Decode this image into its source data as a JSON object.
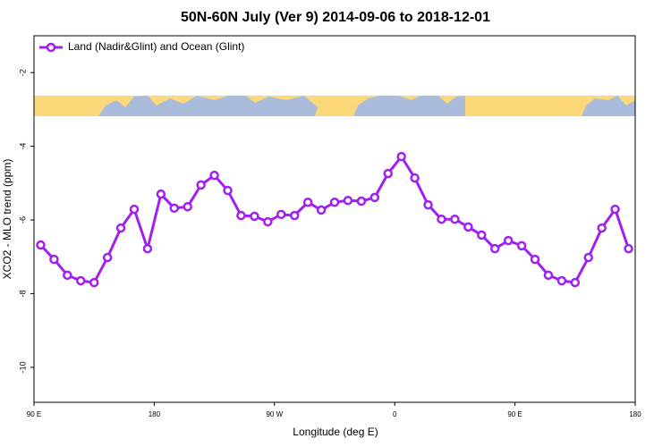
{
  "chart_data": {
    "type": "line",
    "title": "50N-60N July (Ver 9)   2014-09-06 to 2018-12-01",
    "x_label": "Longitude (deg E)",
    "y_label": "XCO2 - MLO trend (ppm)",
    "x": [
      95,
      105,
      115,
      125,
      135,
      145,
      155,
      165,
      175,
      185,
      195,
      205,
      215,
      225,
      235,
      245,
      255,
      265,
      275,
      285,
      295,
      305,
      315,
      325,
      335,
      345,
      355,
      365,
      375,
      385,
      395,
      405,
      415,
      425,
      435,
      445,
      455,
      465,
      475,
      485,
      495,
      505,
      515,
      525,
      535
    ],
    "series": [
      {
        "name": "Land (Nadir&Glint) and Ocean (Glint)",
        "color": "#a020f0",
        "values": [
          -6.68,
          -7.07,
          -7.5,
          -7.65,
          -7.7,
          -7.02,
          -6.22,
          -5.71,
          -6.78,
          -5.3,
          -5.68,
          -5.64,
          -5.05,
          -4.79,
          -5.2,
          -5.88,
          -5.9,
          -6.05,
          -5.85,
          -5.88,
          -5.52,
          -5.73,
          -5.52,
          -5.47,
          -5.49,
          -5.39,
          -4.74,
          -4.28,
          -4.86,
          -5.59,
          -5.98,
          -5.98,
          -6.19,
          -6.41,
          -6.78,
          -6.56,
          -6.7,
          -7.07,
          -7.5,
          -7.65,
          -7.7,
          -7.02,
          -6.22,
          -5.71,
          -6.78
        ]
      }
    ],
    "xlim": [
      90,
      540
    ],
    "ylim": [
      -10.95,
      -1.0
    ],
    "xticks": [
      {
        "value": 90,
        "label": "90 E"
      },
      180,
      {
        "value": 270,
        "label": "90 W"
      },
      {
        "value": 360,
        "label": "0"
      },
      {
        "value": 450,
        "label": "90 E"
      },
      {
        "value": 540,
        "label": "180"
      }
    ],
    "yticks": [
      -2,
      -4,
      -6,
      -8,
      -10
    ],
    "legend": "top-left"
  }
}
